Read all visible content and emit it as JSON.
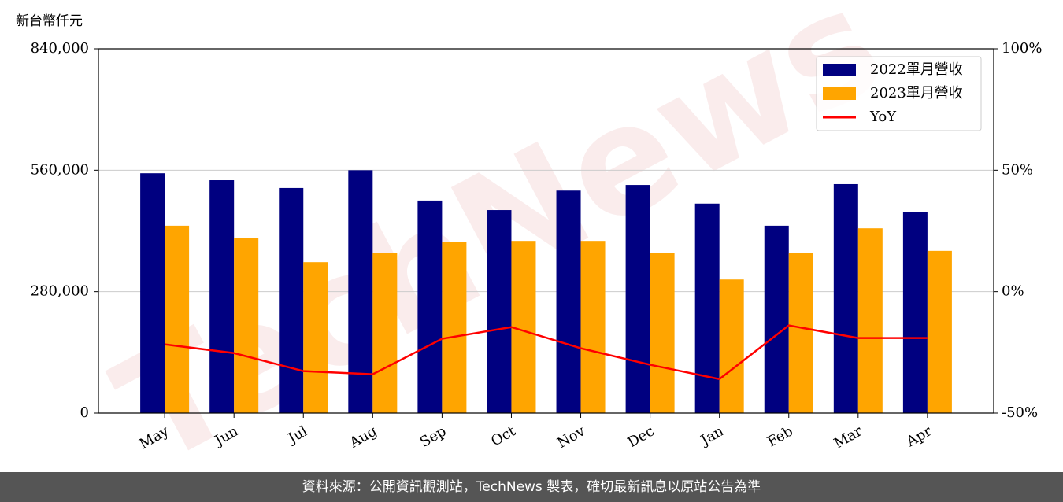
{
  "chart_data": {
    "type": "bar",
    "y_label": "新台幣仟元",
    "watermark": "TechNews",
    "categories": [
      "May",
      "Jun",
      "Jul",
      "Aug",
      "Sep",
      "Oct",
      "Nov",
      "Dec",
      "Jan",
      "Feb",
      "Mar",
      "Apr"
    ],
    "series": [
      {
        "name": "2022單月營收",
        "color": "#000080",
        "type": "bar",
        "values": [
          553000,
          537000,
          519000,
          560000,
          490000,
          468000,
          513000,
          526000,
          483000,
          432000,
          528000,
          463000
        ]
      },
      {
        "name": "2023單月營收",
        "color": "#ffa500",
        "type": "bar",
        "values": [
          432000,
          403000,
          348000,
          370000,
          394000,
          397000,
          397000,
          370000,
          308000,
          370000,
          426000,
          374000
        ]
      },
      {
        "name": "YoY",
        "color": "#ff0000",
        "type": "line",
        "axis": "y2",
        "values": [
          -21.7,
          -25.3,
          -32.7,
          -34.0,
          -19.4,
          -14.6,
          -23.3,
          -30.1,
          -36.0,
          -13.9,
          -19.1,
          -19.1
        ]
      }
    ],
    "ylim": [
      0,
      840000
    ],
    "yticks": [
      0,
      {
        "value": 280000,
        "label": "280,000"
      },
      {
        "value": 560000,
        "label": "560,000"
      },
      {
        "value": 840000,
        "label": "840,000"
      }
    ],
    "y2lim": [
      -50,
      100
    ],
    "y2ticks": [
      {
        "value": -50,
        "label": "-50%"
      },
      {
        "value": 0,
        "label": "0%"
      },
      {
        "value": 50,
        "label": "50%"
      },
      {
        "value": 100,
        "label": "100%"
      }
    ],
    "grid": true,
    "legend": "upper right",
    "source": "資料來源：公開資訊觀測站，TechNews 製表，確切最新訊息以原站公告為準"
  }
}
